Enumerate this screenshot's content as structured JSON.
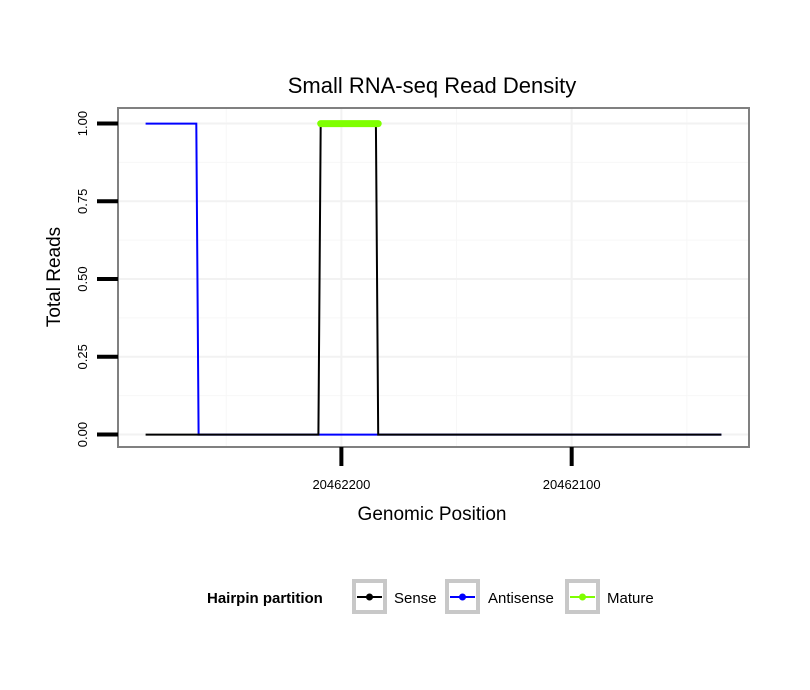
{
  "chart_data": {
    "type": "line",
    "title": "Small RNA-seq Read Density",
    "xlabel": "Genomic Position",
    "ylabel": "Total Reads",
    "xlim": [
      20462297,
      20462023
    ],
    "x_reversed": true,
    "ylim": [
      -0.04,
      1.05
    ],
    "x_ticks": [
      {
        "value": 20462200,
        "label": "20462200"
      },
      {
        "value": 20462100,
        "label": "20462100"
      }
    ],
    "y_ticks": [
      {
        "value": 0.0,
        "label": "0.00"
      },
      {
        "value": 0.25,
        "label": "0.25"
      },
      {
        "value": 0.5,
        "label": "0.50"
      },
      {
        "value": 0.75,
        "label": "0.75"
      },
      {
        "value": 1.0,
        "label": "1.00"
      }
    ],
    "grid": true,
    "legend": {
      "title": "Hairpin partition",
      "position": "bottom"
    },
    "series": [
      {
        "name": "Antisense",
        "color": "#0000ff",
        "style": "line",
        "x": [
          20462285,
          20462263,
          20462262,
          20462210,
          20462209,
          20462184,
          20462183,
          20462035
        ],
        "y": [
          1,
          1,
          0,
          0,
          0,
          0,
          0,
          0
        ]
      },
      {
        "name": "Sense",
        "color": "#000000",
        "style": "line",
        "x": [
          20462285,
          20462210,
          20462209,
          20462185,
          20462184,
          20462035
        ],
        "y": [
          0,
          0,
          1,
          1,
          0,
          0
        ]
      },
      {
        "name": "Mature",
        "color": "#7fff00",
        "style": "thick",
        "x": [
          20462209,
          20462184
        ],
        "y": [
          1,
          1
        ]
      }
    ],
    "legend_order": [
      "Sense",
      "Antisense",
      "Mature"
    ]
  }
}
